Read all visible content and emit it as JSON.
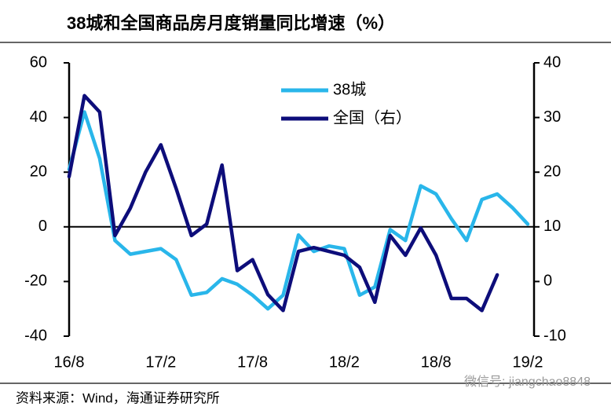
{
  "chart_data": {
    "type": "line",
    "title": "38城和全国商品房月度销量同比增速（%）",
    "source": "资料来源：Wind，海通证券研究所",
    "watermark": "微信号: jiangchao8848",
    "categories": [
      "16/8",
      null,
      null,
      null,
      null,
      null,
      "17/2",
      null,
      null,
      null,
      null,
      null,
      "17/8",
      null,
      null,
      null,
      null,
      null,
      "18/2",
      null,
      null,
      null,
      null,
      null,
      "18/8",
      null,
      null,
      null,
      null,
      null,
      "19/2"
    ],
    "series": [
      {
        "name": "38城",
        "color": "#29b6ea",
        "axis": "y",
        "values": [
          21,
          42,
          25,
          -5,
          -10,
          -9,
          -8,
          -12,
          -25,
          -24,
          -19,
          -21,
          -25,
          -30,
          -25,
          -3,
          -9,
          -7,
          -8,
          -25,
          -22,
          -1,
          -5,
          15,
          12,
          3,
          -5,
          10,
          12,
          7,
          1
        ]
      },
      {
        "name": "全国（右）",
        "color": "#0d0d7a",
        "axis": "y2",
        "values": [
          19.2,
          34,
          31,
          8.4,
          13.4,
          20,
          25,
          17,
          8.4,
          10.5,
          21.3,
          2,
          4,
          -2.4,
          -5.3,
          5.5,
          6.2,
          5.5,
          4.8,
          2.6,
          -3.8,
          8.4,
          4.8,
          9.8,
          4.8,
          -3.1,
          -3.1,
          -5.3,
          1.2,
          null,
          null
        ]
      }
    ],
    "ylim": [
      -40,
      60
    ],
    "yticks": [
      -40,
      -20,
      0,
      20,
      40,
      60
    ],
    "y2lim": [
      -10,
      40
    ],
    "y2ticks": [
      -10,
      0,
      10,
      20,
      30,
      40
    ],
    "legend": "top-center"
  }
}
